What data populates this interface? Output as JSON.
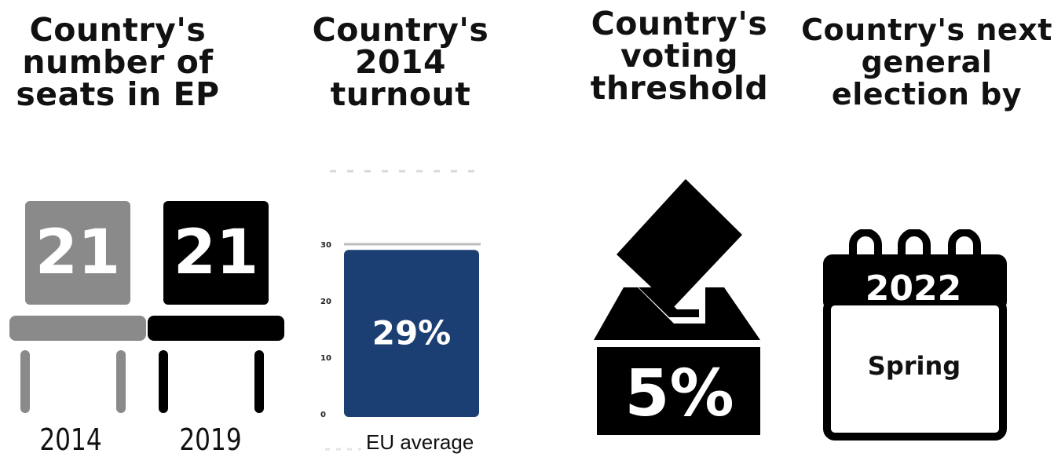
{
  "seats": {
    "heading": [
      "Country's",
      "number of",
      "seats in EP"
    ],
    "seats_2014": "21",
    "seats_2019": "21",
    "year_2014": "2014",
    "year_2019": "2019"
  },
  "turnout": {
    "heading": [
      "Country's",
      "2014",
      "turnout"
    ],
    "value_label": "29%",
    "eu_average_label": "EU average",
    "chart_data": {
      "type": "bar",
      "title": "",
      "categories": [
        ""
      ],
      "values": [
        29
      ],
      "ylim": [
        0,
        30
      ],
      "yticks": [
        "0",
        "10",
        "20",
        "30"
      ],
      "data_labels": [
        "29%"
      ],
      "grid": false,
      "bar_color": "#1c3f73"
    }
  },
  "threshold": {
    "heading": [
      "Country's",
      "voting",
      "threshold"
    ],
    "value": "5%",
    "icon": "ballot-box-icon"
  },
  "election": {
    "heading": [
      "Country's next",
      "general",
      "election by"
    ],
    "year": "2022",
    "season": "Spring",
    "icon": "calendar-icon"
  },
  "colors": {
    "chair_2014": "#8a8a8a",
    "chair_2019": "#000000",
    "bar": "#1c3f73",
    "reference_line": "#bdbdbd",
    "dashed_line": "#d8d8d8"
  }
}
